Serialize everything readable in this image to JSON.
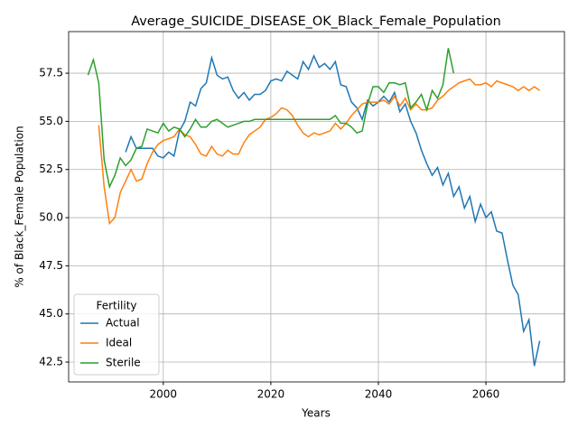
{
  "chart_data": {
    "type": "line",
    "title": "Average_SUICIDE_DISEASE_OK_Black_Female_Population",
    "xlabel": "Years",
    "ylabel": "% of Black_Female Population",
    "legend_title": "Fertility",
    "legend": "lower left",
    "grid": true,
    "xlim": [
      1982.4,
      2074.6
    ],
    "ylim": [
      41.47,
      59.66
    ],
    "xticks": [
      2000,
      2020,
      2040,
      2060
    ],
    "yticks": [
      42.5,
      {
        "value": 45,
        "label": "45.0"
      },
      47.5,
      {
        "value": 50,
        "label": "50.0"
      },
      52.5,
      {
        "value": 55,
        "label": "55.0"
      },
      57.5
    ],
    "x": [
      1986,
      1987,
      1988,
      1989,
      1990,
      1991,
      1992,
      1993,
      1994,
      1995,
      1996,
      1997,
      1998,
      1999,
      2000,
      2001,
      2002,
      2003,
      2004,
      2005,
      2006,
      2007,
      2008,
      2009,
      2010,
      2011,
      2012,
      2013,
      2014,
      2015,
      2016,
      2017,
      2018,
      2019,
      2020,
      2021,
      2022,
      2023,
      2024,
      2025,
      2026,
      2027,
      2028,
      2029,
      2030,
      2031,
      2032,
      2033,
      2034,
      2035,
      2036,
      2037,
      2038,
      2039,
      2040,
      2041,
      2042,
      2043,
      2044,
      2045,
      2046,
      2047,
      2048,
      2049,
      2050,
      2051,
      2052,
      2053,
      2054,
      2055,
      2056,
      2057,
      2058,
      2059,
      2060,
      2061,
      2062,
      2063,
      2064,
      2065,
      2066,
      2067,
      2068,
      2069,
      2070
    ],
    "series": [
      {
        "name": "Actual",
        "color": "#1f77b4",
        "values": [
          null,
          null,
          null,
          null,
          null,
          null,
          null,
          53.4,
          54.2,
          53.6,
          53.6,
          53.6,
          53.6,
          53.2,
          53.1,
          53.4,
          53.2,
          54.5,
          55.0,
          56.0,
          55.8,
          56.7,
          57.0,
          58.3,
          57.4,
          57.2,
          57.3,
          56.6,
          56.2,
          56.5,
          56.1,
          56.4,
          56.4,
          56.6,
          57.1,
          57.2,
          57.1,
          57.6,
          57.4,
          57.2,
          58.1,
          57.7,
          58.4,
          57.8,
          58.0,
          57.7,
          58.1,
          56.9,
          56.8,
          56.0,
          55.7,
          55.1,
          56.1,
          55.8,
          56.0,
          56.3,
          56.0,
          56.5,
          55.5,
          55.9,
          55.0,
          54.4,
          53.5,
          52.8,
          52.2,
          52.6,
          51.7,
          52.3,
          51.1,
          51.6,
          50.5,
          51.1,
          49.8,
          50.7,
          50.0,
          50.3,
          49.3,
          49.2,
          47.8,
          46.5,
          46.0,
          44.1,
          44.7,
          42.3,
          43.6
        ]
      },
      {
        "name": "Ideal",
        "color": "#ff7f0e",
        "values": [
          null,
          null,
          54.8,
          51.6,
          49.7,
          50.0,
          51.3,
          51.9,
          52.5,
          51.9,
          52.0,
          52.8,
          53.4,
          53.8,
          54.0,
          54.1,
          54.2,
          54.6,
          54.3,
          54.2,
          53.8,
          53.3,
          53.2,
          53.7,
          53.3,
          53.2,
          53.5,
          53.3,
          53.3,
          53.9,
          54.3,
          54.5,
          54.7,
          55.1,
          55.2,
          55.4,
          55.7,
          55.6,
          55.3,
          54.8,
          54.4,
          54.2,
          54.4,
          54.3,
          54.4,
          54.5,
          54.9,
          54.6,
          54.9,
          55.3,
          55.6,
          55.9,
          56.0,
          56.0,
          56.0,
          56.1,
          55.9,
          56.3,
          55.8,
          56.2,
          55.6,
          55.9,
          55.6,
          55.6,
          55.7,
          56.1,
          56.3,
          56.6,
          56.8,
          57.0,
          57.1,
          57.2,
          56.9,
          56.9,
          57.0,
          56.8,
          57.1,
          57.0,
          56.9,
          56.8,
          56.6,
          56.8,
          56.6,
          56.8,
          56.6
        ]
      },
      {
        "name": "Sterile",
        "color": "#2ca02c",
        "values": [
          57.4,
          58.2,
          57.0,
          53.0,
          51.6,
          52.2,
          53.1,
          52.7,
          53.0,
          53.6,
          53.7,
          54.6,
          54.5,
          54.4,
          54.9,
          54.5,
          54.7,
          54.6,
          54.2,
          54.6,
          55.1,
          54.7,
          54.7,
          55.0,
          55.1,
          54.9,
          54.7,
          54.8,
          54.9,
          55.0,
          55.0,
          55.1,
          55.1,
          55.1,
          55.1,
          55.1,
          55.1,
          55.1,
          55.1,
          55.1,
          55.1,
          55.1,
          55.1,
          55.1,
          55.1,
          55.1,
          55.3,
          54.9,
          54.9,
          54.7,
          54.4,
          54.5,
          55.9,
          56.8,
          56.8,
          56.5,
          57.0,
          57.0,
          56.9,
          57.0,
          55.7,
          56.0,
          56.4,
          55.6,
          56.6,
          56.2,
          56.9,
          58.8,
          57.5,
          null,
          null,
          null,
          null,
          null,
          null,
          null,
          null,
          null,
          null,
          null,
          null,
          null,
          null,
          null,
          null
        ]
      }
    ]
  }
}
